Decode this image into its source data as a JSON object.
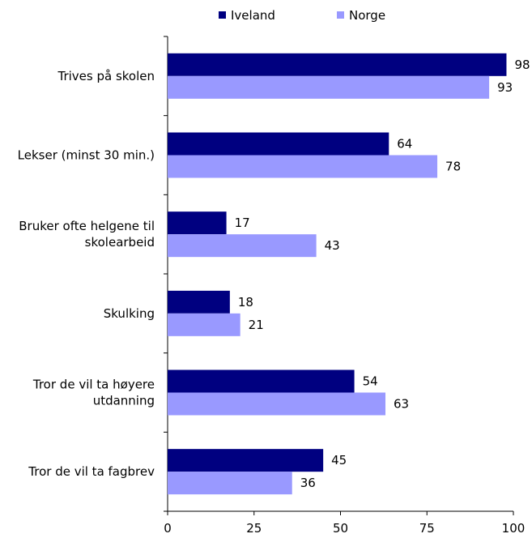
{
  "chart_data": {
    "type": "bar",
    "orientation": "horizontal",
    "categories": [
      [
        "Trives på skolen"
      ],
      [
        "Lekser (minst 30 min.)"
      ],
      [
        "Bruker ofte helgene til",
        "skolearbeid"
      ],
      [
        "Skulking"
      ],
      [
        "Tror de vil ta høyere",
        "utdanning"
      ],
      [
        "Tror de vil ta fagbrev"
      ]
    ],
    "series": [
      {
        "name": "Iveland",
        "color": "#000080",
        "values": [
          98,
          64,
          17,
          18,
          54,
          45
        ]
      },
      {
        "name": "Norge",
        "color": "#9999FF",
        "values": [
          93,
          78,
          43,
          21,
          63,
          36
        ]
      }
    ],
    "xlim": [
      0,
      100
    ],
    "xticks": [
      0,
      25,
      50,
      75,
      100
    ],
    "grid": false,
    "legend": "top",
    "title": "",
    "xlabel": "",
    "ylabel": ""
  }
}
